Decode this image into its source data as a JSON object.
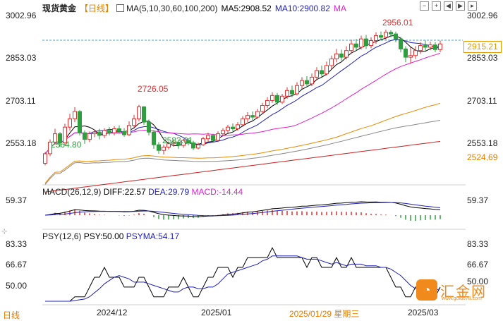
{
  "header": {
    "instrument": "现货黄金",
    "period_bracket": "【日线】",
    "ma_label": "MA(5,10,30,60,100,200)",
    "ma5": "MA5:2908.52",
    "ma10": "MA10:2900.82",
    "ma_more": "MA"
  },
  "toolbar": {
    "minus": "−",
    "plus": "+",
    "left": "◀",
    "right": "▶",
    "more": "▸"
  },
  "main_axis": {
    "left": [
      "3002.96",
      "2853.03",
      "2703.11",
      "2553.18"
    ],
    "right": [
      "3002.96",
      "2853.03",
      "2703.11",
      "2553.18",
      "2524.69"
    ],
    "last_price": "2915.21"
  },
  "annotations": {
    "high_label": "2956.01",
    "mid_high_label": "2726.05",
    "low_label": "2564.80",
    "mid_low_label": "2583.01"
  },
  "macd": {
    "title": "MACD(26,12,9)",
    "diff": "DIFF:22.57",
    "dea": "DEA:29.79",
    "macd": "MACD:-14.44",
    "left_tick": "59.37",
    "right_tick": "59.37"
  },
  "psy": {
    "title": "PSY(12,6)",
    "psy": "PSY:50.00",
    "psyma": "PSYMA:54.17",
    "left_ticks": [
      "83.33",
      "66.67",
      "50.00"
    ],
    "right_ticks": [
      "83.33",
      "66.67",
      "50.00"
    ]
  },
  "x_axis": {
    "labels": [
      "2024/12",
      "2025/01",
      "2025/01/29 星期三",
      "2025/03"
    ]
  },
  "bottom_tab": "日线",
  "watermark": {
    "logo_glyph": "◔",
    "text": "汇金网",
    "url": "www.gold678.com"
  },
  "colors": {
    "up": "#e03030",
    "down": "#2e9e3e",
    "ma5": "#000000",
    "ma10": "#1f1fb8",
    "ma30": "#e020d0",
    "ma60": "#e88a00",
    "ma100": "#888888",
    "ma200": "#c82020",
    "accent": "#e67e00"
  },
  "chart_data": {
    "type": "candlestick",
    "ylim": [
      2500,
      3030
    ],
    "candles": [
      [
        2556,
        2585,
        2550,
        2590
      ],
      [
        2585,
        2620,
        2578,
        2628
      ],
      [
        2620,
        2645,
        2612,
        2660
      ],
      [
        2645,
        2618,
        2605,
        2650
      ],
      [
        2618,
        2665,
        2610,
        2675
      ],
      [
        2665,
        2690,
        2655,
        2705
      ],
      [
        2690,
        2712,
        2680,
        2725
      ],
      [
        2712,
        2648,
        2640,
        2716
      ],
      [
        2648,
        2628,
        2615,
        2655
      ],
      [
        2628,
        2645,
        2620,
        2652
      ],
      [
        2645,
        2650,
        2635,
        2658
      ],
      [
        2650,
        2640,
        2628,
        2660
      ],
      [
        2640,
        2655,
        2632,
        2662
      ],
      [
        2655,
        2648,
        2640,
        2665
      ],
      [
        2648,
        2660,
        2640,
        2668
      ],
      [
        2660,
        2652,
        2645,
        2670
      ],
      [
        2652,
        2642,
        2636,
        2662
      ],
      [
        2642,
        2670,
        2638,
        2682
      ],
      [
        2670,
        2690,
        2660,
        2702
      ],
      [
        2690,
        2726,
        2682,
        2732
      ],
      [
        2726,
        2680,
        2672,
        2728
      ],
      [
        2680,
        2650,
        2640,
        2688
      ],
      [
        2650,
        2612,
        2600,
        2656
      ],
      [
        2612,
        2595,
        2585,
        2620
      ],
      [
        2595,
        2605,
        2583,
        2612
      ],
      [
        2605,
        2615,
        2598,
        2622
      ],
      [
        2615,
        2620,
        2606,
        2628
      ],
      [
        2620,
        2610,
        2600,
        2626
      ],
      [
        2610,
        2625,
        2603,
        2630
      ],
      [
        2625,
        2618,
        2610,
        2632
      ],
      [
        2618,
        2602,
        2596,
        2624
      ],
      [
        2602,
        2612,
        2598,
        2618
      ],
      [
        2612,
        2630,
        2608,
        2636
      ],
      [
        2630,
        2640,
        2622,
        2648
      ],
      [
        2640,
        2625,
        2618,
        2645
      ],
      [
        2625,
        2645,
        2620,
        2652
      ],
      [
        2645,
        2655,
        2638,
        2662
      ],
      [
        2655,
        2665,
        2648,
        2672
      ],
      [
        2665,
        2660,
        2652,
        2676
      ],
      [
        2660,
        2672,
        2654,
        2680
      ],
      [
        2672,
        2690,
        2666,
        2698
      ],
      [
        2690,
        2700,
        2680,
        2710
      ],
      [
        2700,
        2695,
        2686,
        2712
      ],
      [
        2695,
        2712,
        2690,
        2720
      ],
      [
        2712,
        2730,
        2705,
        2738
      ],
      [
        2730,
        2745,
        2722,
        2755
      ],
      [
        2745,
        2760,
        2738,
        2770
      ],
      [
        2760,
        2740,
        2732,
        2768
      ],
      [
        2740,
        2758,
        2735,
        2765
      ],
      [
        2758,
        2775,
        2750,
        2785
      ],
      [
        2775,
        2765,
        2755,
        2790
      ],
      [
        2765,
        2790,
        2760,
        2800
      ],
      [
        2790,
        2805,
        2780,
        2815
      ],
      [
        2805,
        2795,
        2786,
        2818
      ],
      [
        2795,
        2815,
        2788,
        2826
      ],
      [
        2815,
        2835,
        2808,
        2845
      ],
      [
        2835,
        2825,
        2816,
        2850
      ],
      [
        2825,
        2850,
        2820,
        2862
      ],
      [
        2850,
        2870,
        2840,
        2880
      ],
      [
        2870,
        2885,
        2860,
        2900
      ],
      [
        2885,
        2875,
        2865,
        2898
      ],
      [
        2875,
        2895,
        2868,
        2908
      ],
      [
        2895,
        2915,
        2885,
        2928
      ],
      [
        2915,
        2905,
        2895,
        2930
      ],
      [
        2905,
        2930,
        2898,
        2940
      ],
      [
        2930,
        2910,
        2900,
        2942
      ],
      [
        2910,
        2925,
        2902,
        2935
      ],
      [
        2925,
        2940,
        2915,
        2950
      ],
      [
        2940,
        2935,
        2925,
        2952
      ],
      [
        2935,
        2950,
        2928,
        2958
      ],
      [
        2950,
        2945,
        2935,
        2956
      ],
      [
        2945,
        2930,
        2920,
        2952
      ],
      [
        2930,
        2900,
        2890,
        2936
      ],
      [
        2900,
        2875,
        2860,
        2908
      ],
      [
        2875,
        2880,
        2855,
        2905
      ],
      [
        2880,
        2895,
        2870,
        2908
      ],
      [
        2895,
        2910,
        2885,
        2920
      ],
      [
        2910,
        2905,
        2895,
        2925
      ],
      [
        2905,
        2912,
        2896,
        2922
      ],
      [
        2912,
        2898,
        2890,
        2920
      ],
      [
        2898,
        2915,
        2890,
        2925
      ]
    ]
  }
}
